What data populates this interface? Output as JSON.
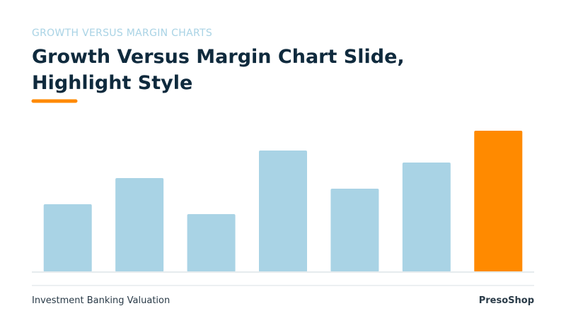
{
  "eyebrow": "GROWTH VERSUS MARGIN CHARTS",
  "title_lines": [
    "Growth Versus Margin Chart Slide,",
    "Highlight Style"
  ],
  "footer": {
    "left": "Investment Banking Valuation",
    "right": "PresoShop"
  },
  "chart_data": {
    "type": "bar",
    "values": [
      96,
      133,
      82,
      172,
      118,
      155,
      200
    ],
    "colors": [
      "#a9d3e5",
      "#a9d3e5",
      "#a9d3e5",
      "#a9d3e5",
      "#a9d3e5",
      "#a9d3e5",
      "#ff8a00"
    ],
    "ylim": [
      0,
      200
    ]
  }
}
